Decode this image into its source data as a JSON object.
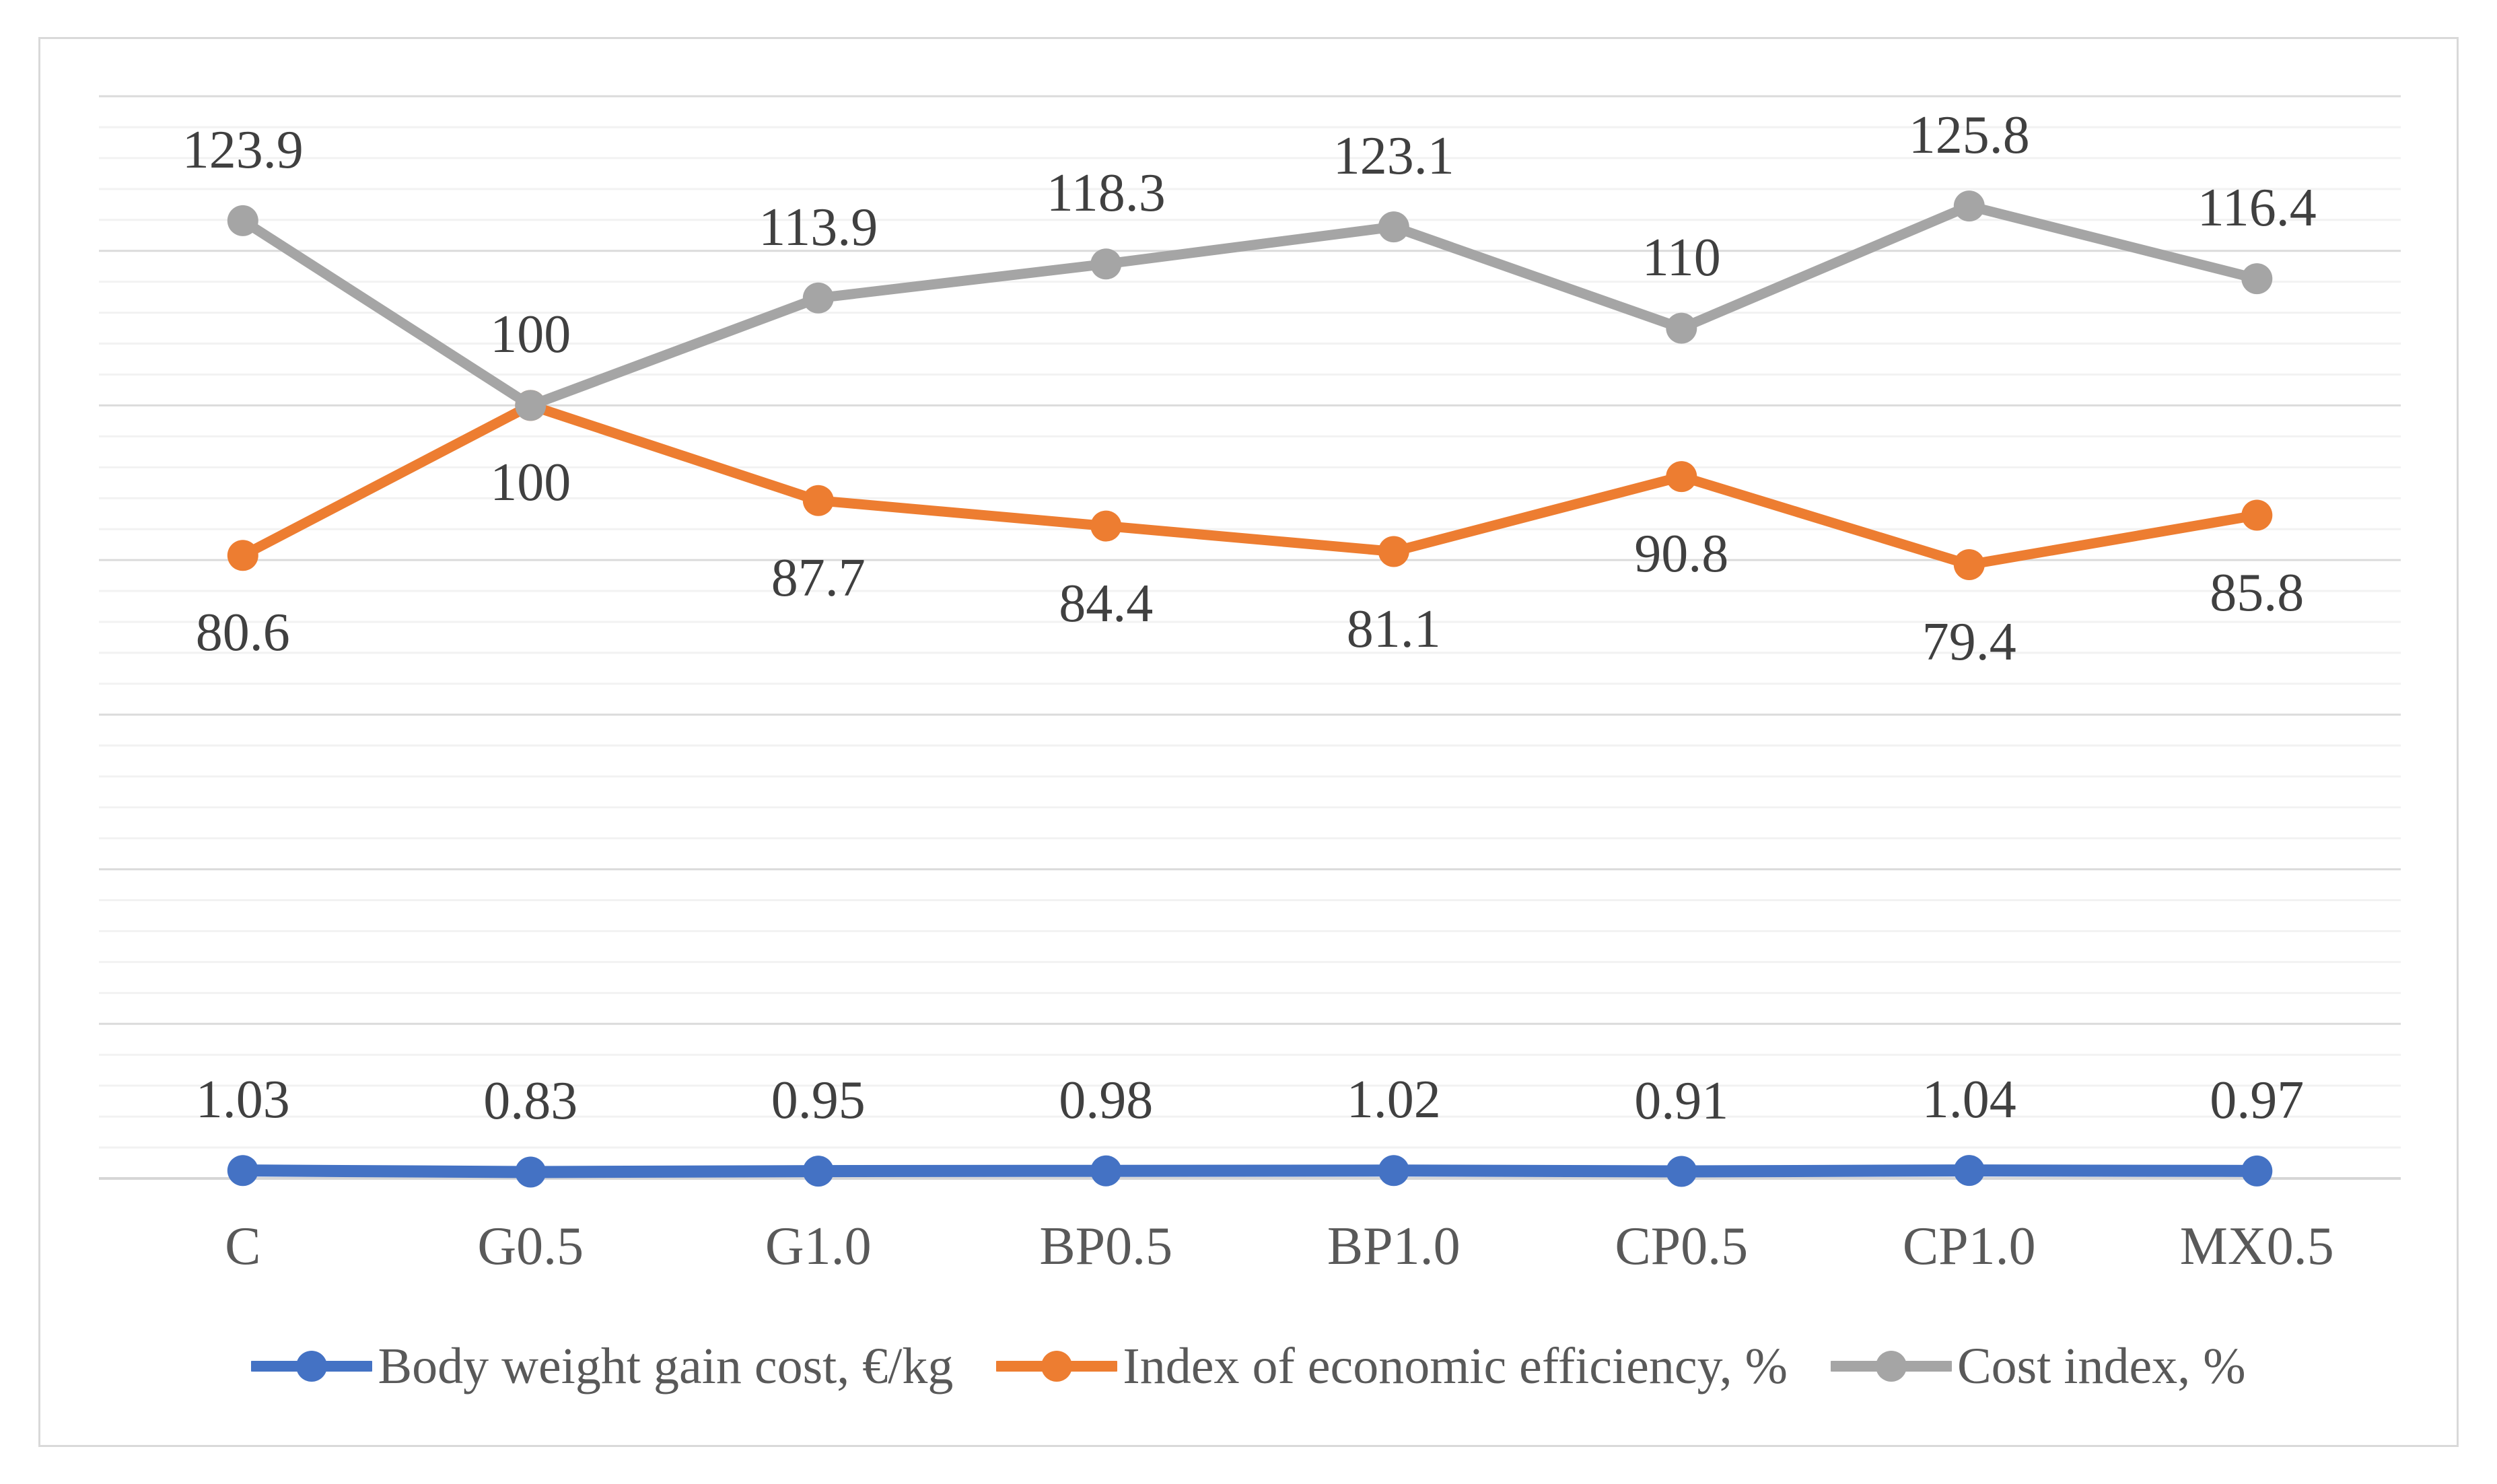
{
  "chart_data": {
    "type": "line",
    "title": "",
    "categories": [
      "C",
      "G0.5",
      "G1.0",
      "BP0.5",
      "BP1.0",
      "CP0.5",
      "CP1.0",
      "MX0.5"
    ],
    "series": [
      {
        "name": "Body weight gain cost, €/kg",
        "color": "#4472C4",
        "marker": "circle",
        "data_label_position": "above",
        "values": [
          1.03,
          0.83,
          0.95,
          0.98,
          1.02,
          0.91,
          1.04,
          0.97
        ]
      },
      {
        "name": "Index of economic efficiency, %",
        "color": "#ED7D31",
        "marker": "circle",
        "data_label_position": "below",
        "values": [
          80.6,
          100,
          87.7,
          84.4,
          81.1,
          90.8,
          79.4,
          85.8
        ]
      },
      {
        "name": "Cost index, %",
        "color": "#A5A5A5",
        "marker": "circle",
        "data_label_position": "above",
        "values": [
          123.9,
          100,
          113.9,
          118.3,
          123.1,
          110,
          125.8,
          116.4
        ]
      }
    ],
    "xlabel": "",
    "ylabel": "",
    "ylim": [
      0,
      140
    ],
    "y_major_unit": 20,
    "y_minor_unit": 4,
    "y_axis_tick_labels_visible": false,
    "grid": "horizontal minor and major gridlines, no vertical gridlines",
    "legend_position": "bottom",
    "data_labels_visible": true
  },
  "colors": {
    "background": "#FFFFFF",
    "frame_border": "#D9D9D9",
    "major_gridline": "#DBDBDB",
    "minor_gridline": "#F2F2F2",
    "axis_line": "#D6D6D6",
    "data_label_text": "#404040",
    "axis_label_text": "#595959",
    "legend_text": "#595959"
  }
}
